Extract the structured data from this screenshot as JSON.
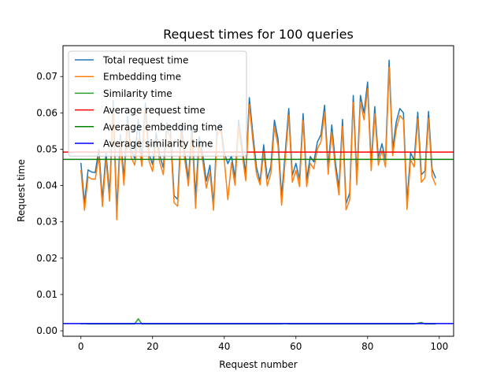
{
  "chart_data": {
    "type": "line",
    "title": "Request times for 100 queries",
    "xlabel": "Request number",
    "ylabel": "Request time",
    "xlim": [
      -5,
      104
    ],
    "ylim": [
      -0.0015,
      0.0785
    ],
    "xticks": [
      0,
      20,
      40,
      60,
      80,
      100
    ],
    "yticks": [
      0.0,
      0.01,
      0.02,
      0.03,
      0.04,
      0.05,
      0.06,
      0.07
    ],
    "ytick_labels": [
      "0.00",
      "0.01",
      "0.02",
      "0.03",
      "0.04",
      "0.05",
      "0.06",
      "0.07"
    ],
    "grid": false,
    "legend_position": "top-left",
    "x": [
      0,
      1,
      2,
      3,
      4,
      5,
      6,
      7,
      8,
      9,
      10,
      11,
      12,
      13,
      14,
      15,
      16,
      17,
      18,
      19,
      20,
      21,
      22,
      23,
      24,
      25,
      26,
      27,
      28,
      29,
      30,
      31,
      32,
      33,
      34,
      35,
      36,
      37,
      38,
      39,
      40,
      41,
      42,
      43,
      44,
      45,
      46,
      47,
      48,
      49,
      50,
      51,
      52,
      53,
      54,
      55,
      56,
      57,
      58,
      59,
      60,
      61,
      62,
      63,
      64,
      65,
      66,
      67,
      68,
      69,
      70,
      71,
      72,
      73,
      74,
      75,
      76,
      77,
      78,
      79,
      80,
      81,
      82,
      83,
      84,
      85,
      86,
      87,
      88,
      89,
      90,
      91,
      92,
      93,
      94,
      95,
      96,
      97,
      98,
      99
    ],
    "series": [
      {
        "name": "Total request time",
        "color": "#1f77b4",
        "values": [
          0.0462,
          0.0352,
          0.0443,
          0.0437,
          0.0436,
          0.05,
          0.0361,
          0.049,
          0.0376,
          0.0634,
          0.0331,
          0.054,
          0.042,
          0.0591,
          0.0497,
          0.0475,
          0.0582,
          0.0472,
          0.0628,
          0.0487,
          0.0458,
          0.0545,
          0.0483,
          0.0449,
          0.0573,
          0.055,
          0.0372,
          0.0362,
          0.0566,
          0.0488,
          0.0418,
          0.0562,
          0.0369,
          0.0534,
          0.0485,
          0.0412,
          0.0456,
          0.0347,
          0.0556,
          0.0571,
          0.0491,
          0.046,
          0.0482,
          0.042,
          0.058,
          0.0506,
          0.0432,
          0.0642,
          0.054,
          0.045,
          0.0411,
          0.0512,
          0.0418,
          0.0452,
          0.058,
          0.0528,
          0.037,
          0.0488,
          0.0612,
          0.0428,
          0.0461,
          0.0416,
          0.0598,
          0.0416,
          0.048,
          0.0465,
          0.052,
          0.054,
          0.0621,
          0.045,
          0.0567,
          0.0465,
          0.0393,
          0.0582,
          0.035,
          0.038,
          0.0648,
          0.0421,
          0.0648,
          0.06,
          0.0685,
          0.046,
          0.0617,
          0.0475,
          0.0515,
          0.047,
          0.0745,
          0.0501,
          0.0575,
          0.0612,
          0.06,
          0.0355,
          0.049,
          0.047,
          0.0602,
          0.043,
          0.044,
          0.0604,
          0.0445,
          0.042
        ]
      },
      {
        "name": "Embedding time",
        "color": "#ff7f0e",
        "values": [
          0.0443,
          0.0332,
          0.0424,
          0.0418,
          0.0417,
          0.0481,
          0.0342,
          0.0471,
          0.0357,
          0.0615,
          0.0306,
          0.0521,
          0.0401,
          0.0572,
          0.0478,
          0.0456,
          0.053,
          0.0453,
          0.0609,
          0.0468,
          0.0439,
          0.0526,
          0.0464,
          0.043,
          0.0554,
          0.0531,
          0.0353,
          0.0343,
          0.0547,
          0.0469,
          0.0399,
          0.0543,
          0.0337,
          0.0515,
          0.0466,
          0.0393,
          0.0437,
          0.0332,
          0.0537,
          0.0552,
          0.0472,
          0.0361,
          0.0463,
          0.0401,
          0.0561,
          0.0487,
          0.0413,
          0.0623,
          0.0521,
          0.0431,
          0.0402,
          0.0493,
          0.0399,
          0.0433,
          0.0561,
          0.0509,
          0.0346,
          0.0469,
          0.0593,
          0.0409,
          0.0442,
          0.0397,
          0.0579,
          0.0397,
          0.0461,
          0.0446,
          0.0501,
          0.0521,
          0.0602,
          0.0431,
          0.0548,
          0.0446,
          0.0374,
          0.0563,
          0.0333,
          0.0361,
          0.0629,
          0.0402,
          0.0629,
          0.0581,
          0.0666,
          0.0441,
          0.0598,
          0.0456,
          0.0496,
          0.0451,
          0.0726,
          0.0482,
          0.0556,
          0.0593,
          0.0581,
          0.0334,
          0.0471,
          0.0451,
          0.0583,
          0.0409,
          0.0421,
          0.0585,
          0.0426,
          0.0401
        ]
      },
      {
        "name": "Similarity time",
        "color": "#2ca02c",
        "values": [
          0.0019,
          0.002,
          0.0019,
          0.0019,
          0.0019,
          0.0019,
          0.0019,
          0.0019,
          0.0019,
          0.0019,
          0.0019,
          0.0019,
          0.0019,
          0.0019,
          0.0019,
          0.0019,
          0.0033,
          0.0019,
          0.0019,
          0.0019,
          0.0019,
          0.0019,
          0.0019,
          0.0019,
          0.0019,
          0.0019,
          0.0019,
          0.0019,
          0.0019,
          0.0019,
          0.0019,
          0.0019,
          0.0019,
          0.0019,
          0.0019,
          0.0019,
          0.0019,
          0.0019,
          0.0019,
          0.0019,
          0.0019,
          0.0019,
          0.0019,
          0.0019,
          0.0019,
          0.0019,
          0.0019,
          0.0019,
          0.0019,
          0.0019,
          0.0019,
          0.0019,
          0.0019,
          0.0019,
          0.0019,
          0.0019,
          0.0019,
          0.002,
          0.0019,
          0.0019,
          0.0019,
          0.0019,
          0.0019,
          0.0019,
          0.0019,
          0.0019,
          0.0019,
          0.0019,
          0.0019,
          0.0019,
          0.0019,
          0.0019,
          0.0019,
          0.0019,
          0.0019,
          0.0019,
          0.0019,
          0.0019,
          0.0019,
          0.0019,
          0.0019,
          0.0019,
          0.0019,
          0.0019,
          0.0019,
          0.0019,
          0.0019,
          0.0019,
          0.0019,
          0.0019,
          0.0019,
          0.0019,
          0.0019,
          0.0019,
          0.0021,
          0.0023,
          0.0019,
          0.0019,
          0.0019,
          0.0019
        ]
      }
    ],
    "reference_lines": [
      {
        "name": "Average request time",
        "color": "#ff0000",
        "value": 0.0492
      },
      {
        "name": "Average embedding time",
        "color": "#008000",
        "value": 0.0472
      },
      {
        "name": "Average similarity time",
        "color": "#0000ff",
        "value": 0.002
      }
    ]
  }
}
